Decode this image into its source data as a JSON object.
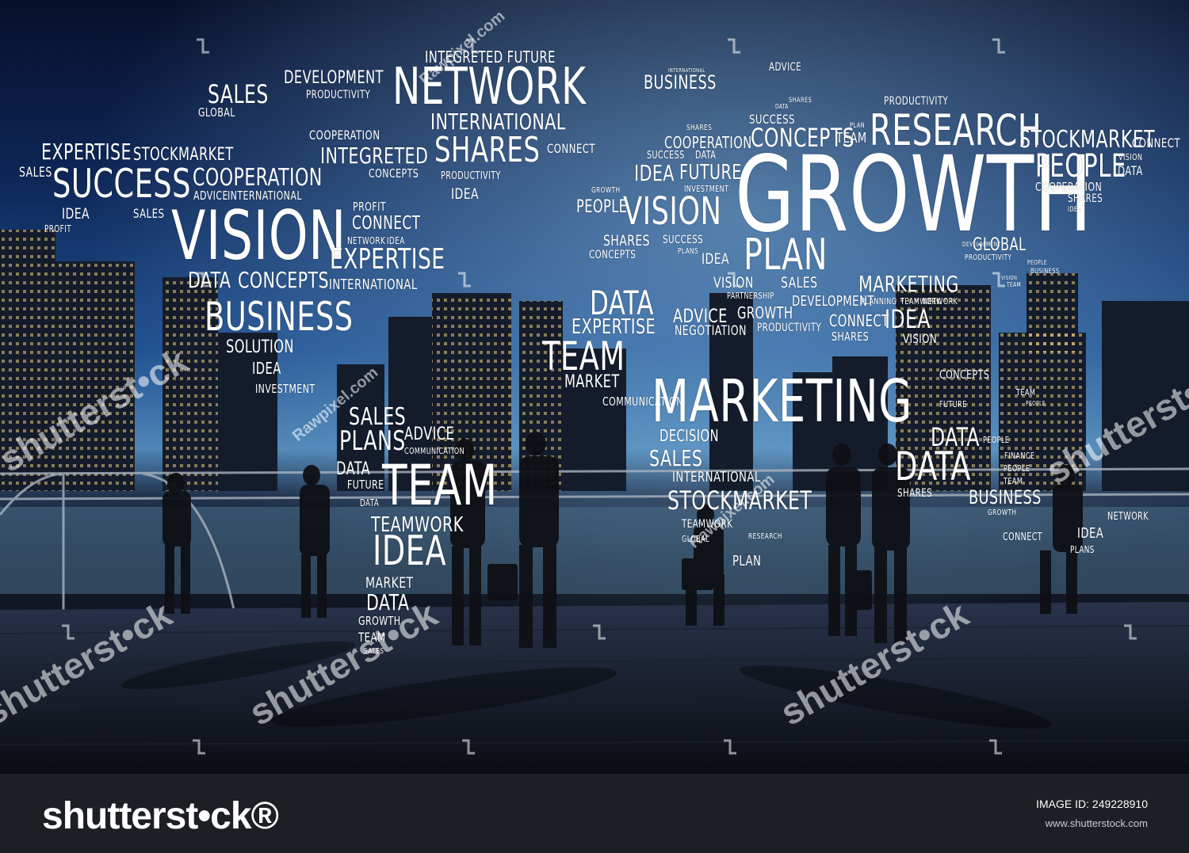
{
  "footer": {
    "logo": "shutterst•ck®",
    "image_id": "IMAGE ID: 249228910",
    "site": "www.shutterstock.com"
  },
  "watermarks": [
    "shutterst•ck",
    "shutterst•ck",
    "shutterst•ck",
    "shutterst•ck",
    "shutterst•ck",
    "Rawpixel.com",
    "Rawpixel.com",
    "Rawpixel.com"
  ],
  "words": [
    "GROWTH",
    "DEVELOPMENT",
    "PRODUCTIVITY",
    "SALES",
    "GLOBAL",
    "INTEGRETED FUTURE",
    "NETWORK",
    "INTERNATIONAL",
    "SHARES",
    "COOPERATION",
    "INTEGRETED",
    "CONCEPTS",
    "CONNECT",
    "PRODUCTIVITY",
    "IDEA",
    "EXPERTISE",
    "STOCKMARKET",
    "SALES",
    "SUCCESS",
    "COOPERATION",
    "ADVICE",
    "INTERNATIONAL",
    "IDEA",
    "SALES",
    "PROFIT",
    "VISION",
    "PROFIT",
    "CONNECT",
    "NETWORK",
    "IDEA",
    "EXPERTISE",
    "DATA",
    "CONCEPTS",
    "INTERNATIONAL",
    "BUSINESS",
    "SOLUTION",
    "IDEA",
    "INVESTMENT",
    "SALES",
    "PLANS",
    "ADVICE",
    "COMMUNICATION",
    "DATA",
    "FUTURE",
    "DATA",
    "TEAM",
    "TEAMWORK",
    "IDEA",
    "MARKET",
    "DATA",
    "GROWTH",
    "TEAM",
    "SALES",
    "INTERNATIONAL",
    "BUSINESS",
    "ADVICE",
    "DATA",
    "SHARES",
    "SUCCESS",
    "PRODUCTIVITY",
    "SHARES",
    "COOPERATION",
    "CONCEPTS",
    "TEAM",
    "RESEARCH",
    "STOCKMARKET",
    "CONNECT",
    "PEOPLE",
    "VISION",
    "DATA",
    "COOPERATION",
    "SHARES",
    "IDEA",
    "PLAN",
    "SUCCESS",
    "DATA",
    "IDEA",
    "FUTURE",
    "INVESTMENT",
    "GROWTH",
    "PEOPLE",
    "VISION",
    "SHARES",
    "SUCCESS",
    "PLANS",
    "CONCEPTS",
    "IDEA",
    "PLAN",
    "GLOBAL",
    "PRODUCTIVITY",
    "VISION",
    "SALES",
    "MARKETING",
    "PARTNERSHIP",
    "DEVELOPMENT",
    "PLANNING",
    "TEAMWORK",
    "NETWORK",
    "DATA",
    "EXPERTISE",
    "ADVICE",
    "NEGOTIATION",
    "GROWTH",
    "PRODUCTIVITY",
    "CONNECT",
    "IDEA",
    "SHARES",
    "VISION",
    "TEAM",
    "MARKET",
    "COMMUNICATION",
    "MARKETING",
    "DECISION",
    "SALES",
    "INTERNATIONAL",
    "STOCKMARKET",
    "TEAMWORK",
    "GLOBAL",
    "RESEARCH",
    "PLAN",
    "DATA",
    "PEOPLE",
    "DATA",
    "FINANCE",
    "PEOPLE",
    "TEAM",
    "SHARES",
    "BUSINESS",
    "GROWTH",
    "CONNECT",
    "NETWORK",
    "IDEA",
    "PLANS",
    "CONCEPTS",
    "TEAM",
    "PEOPLE",
    "FUTURE",
    "BUSINESS",
    "DEVELOPMENT",
    "PEOPLE",
    "VISION",
    "TEAM",
    "PLAN",
    "COMMUNICATION",
    "DATA"
  ],
  "colors": {
    "sky_top": "#07102a",
    "sky_mid": "#1f4f8e",
    "footer": "#1c1f23",
    "text": "#ffffff"
  }
}
